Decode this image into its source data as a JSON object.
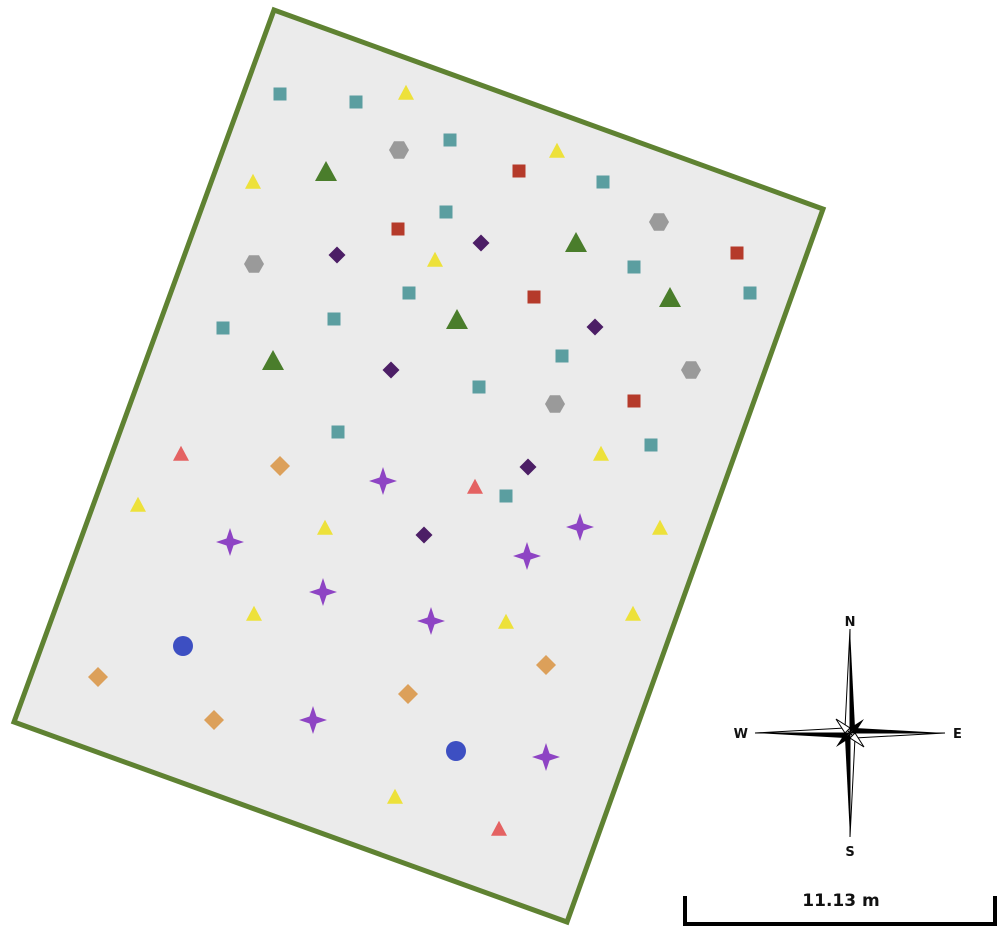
{
  "map": {
    "background_color": "#ffffff",
    "plot_fill_color": "#ebebeb",
    "plot_border_color": "#5f8232"
  },
  "marker_styles": {
    "teal-square": {
      "shape": "square",
      "color": "#5b9ea0"
    },
    "red-square": {
      "shape": "square",
      "color": "#b53a2a"
    },
    "yellow-triangle": {
      "shape": "triangle",
      "color": "#ede13a"
    },
    "green-triangle": {
      "shape": "triangle",
      "color": "#4a7d2b"
    },
    "salmon-triangle": {
      "shape": "triangle",
      "color": "#e46262"
    },
    "gray-hexagon": {
      "shape": "hexagon",
      "color": "#9a9a9a"
    },
    "purple-diamond": {
      "shape": "diamond",
      "color": "#4c1e66"
    },
    "orange-diamond": {
      "shape": "diamond",
      "color": "#dca05a"
    },
    "violet-star": {
      "shape": "star4",
      "color": "#8e44c4"
    },
    "blue-circle": {
      "shape": "circle",
      "color": "#3d4fc2"
    }
  },
  "compass": {
    "north_label": "N",
    "south_label": "S",
    "east_label": "E",
    "west_label": "W"
  },
  "scale_bar": {
    "label": "11.13 m"
  }
}
